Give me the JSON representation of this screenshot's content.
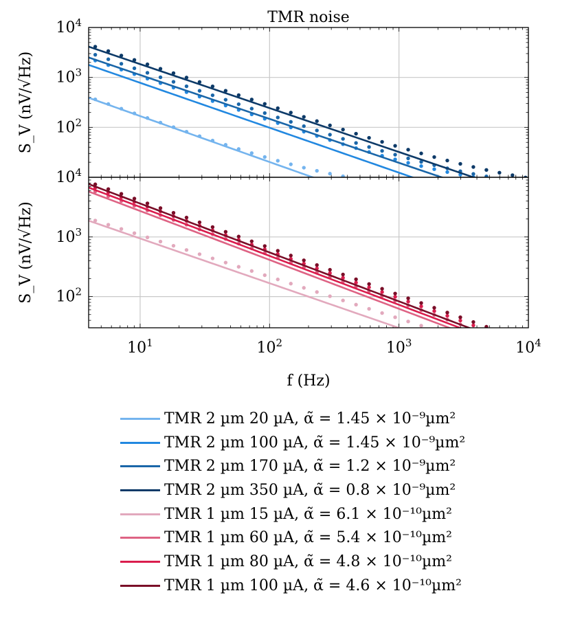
{
  "chart_data": [
    {
      "type": "line",
      "title": "TMR noise",
      "ylabel": "S_V (nV/√Hz)",
      "xscale": "log",
      "yscale": "log",
      "xlim": [
        4,
        10000
      ],
      "ylim": [
        10,
        10000
      ],
      "grid": true,
      "xtick_labels": [],
      "ytick_labels": [
        {
          "value": 100,
          "base": "10",
          "exp": "2"
        },
        {
          "value": 1000,
          "base": "10",
          "exp": "3"
        },
        {
          "value": 10000,
          "base": "10",
          "exp": "4"
        }
      ],
      "series": [
        {
          "name": "TMR 2 µm 20 µA, α̃ = 1.45 × 10⁻⁹µm²",
          "color": "#74b4ee",
          "fit": {
            "A": 1400,
            "alpha": 0.92,
            "floor": 0
          },
          "points": {
            "A": 1500,
            "alpha": 0.95,
            "floor": 5
          }
        },
        {
          "name": "TMR 2 µm 100 µA, α̃ = 1.45 × 10⁻⁹µm²",
          "color": "#2288e0",
          "fit": {
            "A": 6200,
            "alpha": 0.9,
            "floor": 0
          },
          "points": {
            "A": 8400,
            "alpha": 0.9,
            "floor": 5
          }
        },
        {
          "name": "TMR 2 µm 170 µA, α̃ = 1.2 × 10⁻⁹µm²",
          "color": "#1a66a8",
          "fit": {
            "A": 8500,
            "alpha": 0.88,
            "floor": 0
          },
          "points": {
            "A": 11000,
            "alpha": 0.9,
            "floor": 5
          }
        },
        {
          "name": "TMR 2 µm 350 µA, α̃ = 0.8 × 10⁻⁹µm²",
          "color": "#0d3a68",
          "fit": {
            "A": 14000,
            "alpha": 0.88,
            "floor": 0
          },
          "points": {
            "A": 15500,
            "alpha": 0.88,
            "floor": 5
          }
        }
      ]
    },
    {
      "type": "line",
      "title": "",
      "xlabel": "f (Hz)",
      "ylabel": "S_V (nV/√Hz)",
      "xscale": "log",
      "yscale": "log",
      "xlim": [
        4,
        10000
      ],
      "ylim": [
        30,
        10000
      ],
      "grid": true,
      "xtick_labels": [
        {
          "value": 10,
          "base": "10",
          "exp": "1"
        },
        {
          "value": 100,
          "base": "10",
          "exp": "2"
        },
        {
          "value": 1000,
          "base": "10",
          "exp": "3"
        },
        {
          "value": 10000,
          "base": "10",
          "exp": "4"
        }
      ],
      "ytick_labels": [
        {
          "value": 100,
          "base": "10",
          "exp": "2"
        },
        {
          "value": 1000,
          "base": "10",
          "exp": "3"
        },
        {
          "value": 10000,
          "base": "10",
          "exp": "4"
        }
      ],
      "series": [
        {
          "name": "TMR 1 µm 15 µA, α̃ = 6.1 × 10⁻¹⁰µm²",
          "color": "#e2a9bd",
          "fit": {
            "A": 5300,
            "alpha": 0.75,
            "floor": 0
          },
          "points": {
            "A": 5400,
            "alpha": 0.7,
            "floor": 0
          }
        },
        {
          "name": "TMR 1 µm 60 µA, α̃ = 5.4 × 10⁻¹⁰µm²",
          "color": "#de6384",
          "fit": {
            "A": 18000,
            "alpha": 0.82,
            "floor": 0
          },
          "points": {
            "A": 19000,
            "alpha": 0.79,
            "floor": 0
          }
        },
        {
          "name": "TMR 1 µm 80 µA, α̃ = 4.8 × 10⁻¹⁰µm²",
          "color": "#da1d4d",
          "fit": {
            "A": 21000,
            "alpha": 0.82,
            "floor": 0
          },
          "points": {
            "A": 22000,
            "alpha": 0.79,
            "floor": 0
          }
        },
        {
          "name": "TMR 1 µm 100 µA, α̃ = 4.6 × 10⁻¹⁰µm²",
          "color": "#7a0e28",
          "fit": {
            "A": 24000,
            "alpha": 0.82,
            "floor": 0
          },
          "points": {
            "A": 25000,
            "alpha": 0.79,
            "floor": 0
          }
        }
      ]
    }
  ],
  "legend": {
    "placement": "bottom",
    "items": [
      {
        "label": "TMR 2 µm 20 µA, α̃ = 1.45 × 10⁻⁹µm²",
        "color": "#74b4ee"
      },
      {
        "label": "TMR 2 µm 100 µA, α̃ = 1.45 × 10⁻⁹µm²",
        "color": "#2288e0"
      },
      {
        "label": "TMR 2 µm 170 µA, α̃ = 1.2 × 10⁻⁹µm²",
        "color": "#1a66a8"
      },
      {
        "label": "TMR 2 µm 350 µA, α̃ = 0.8 × 10⁻⁹µm²",
        "color": "#0d3a68"
      },
      {
        "label": "TMR 1 µm 15 µA, α̃ = 6.1 × 10⁻¹⁰µm²",
        "color": "#e2a9bd"
      },
      {
        "label": "TMR 1 µm 60 µA, α̃ = 5.4 × 10⁻¹⁰µm²",
        "color": "#de6384"
      },
      {
        "label": "TMR 1 µm 80 µA, α̃ = 4.8 × 10⁻¹⁰µm²",
        "color": "#da1d4d"
      },
      {
        "label": "TMR 1 µm 100 µA, α̃ = 4.6 × 10⁻¹⁰µm²",
        "color": "#7a0e28"
      }
    ]
  }
}
